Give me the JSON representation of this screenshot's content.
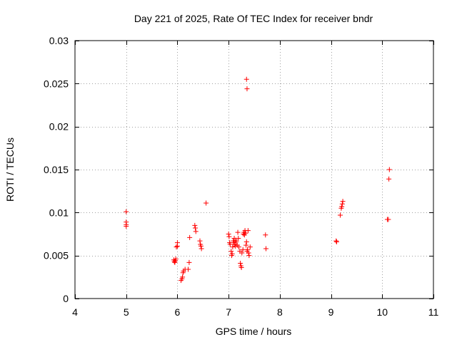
{
  "chart_data": {
    "type": "scatter",
    "title": "Day 221 of 2025, Rate Of TEC Index for receiver bndr",
    "xlabel": "GPS time / hours",
    "ylabel": "ROTI / TECUs",
    "xlim": [
      4,
      11
    ],
    "ylim": [
      0,
      0.03
    ],
    "grid": true,
    "x_ticks": [
      4,
      5,
      6,
      7,
      8,
      9,
      10,
      11
    ],
    "x_tick_labels": [
      "4",
      "5",
      "6",
      "7",
      "8",
      "9",
      "10",
      "11"
    ],
    "y_ticks": [
      0,
      0.005,
      0.01,
      0.015,
      0.02,
      0.025,
      0.03
    ],
    "y_tick_labels": [
      "0",
      "0.005",
      "0.01",
      "0.015",
      "0.02",
      "0.025",
      "0.03"
    ],
    "marker": "plus",
    "color": "#ff0000",
    "points": [
      [
        5.0,
        0.0101
      ],
      [
        5.0,
        0.0089
      ],
      [
        5.0,
        0.0086
      ],
      [
        5.0,
        0.0084
      ],
      [
        5.93,
        0.0045
      ],
      [
        5.94,
        0.0043
      ],
      [
        5.95,
        0.0042
      ],
      [
        5.96,
        0.0044
      ],
      [
        5.97,
        0.0046
      ],
      [
        5.98,
        0.006
      ],
      [
        6.0,
        0.0061
      ],
      [
        6.0,
        0.0065
      ],
      [
        6.07,
        0.0021
      ],
      [
        6.09,
        0.0023
      ],
      [
        6.1,
        0.0025
      ],
      [
        6.11,
        0.003
      ],
      [
        6.12,
        0.0032
      ],
      [
        6.15,
        0.0034
      ],
      [
        6.21,
        0.0034
      ],
      [
        6.23,
        0.0042
      ],
      [
        6.24,
        0.0071
      ],
      [
        6.34,
        0.0085
      ],
      [
        6.35,
        0.0082
      ],
      [
        6.36,
        0.0078
      ],
      [
        6.44,
        0.0067
      ],
      [
        6.45,
        0.0063
      ],
      [
        6.46,
        0.0061
      ],
      [
        6.47,
        0.0058
      ],
      [
        6.56,
        0.0111
      ],
      [
        7.0,
        0.0075
      ],
      [
        7.01,
        0.0072
      ],
      [
        7.02,
        0.0065
      ],
      [
        7.03,
        0.0063
      ],
      [
        7.05,
        0.0055
      ],
      [
        7.06,
        0.005
      ],
      [
        7.07,
        0.0052
      ],
      [
        7.08,
        0.006
      ],
      [
        7.09,
        0.0067
      ],
      [
        7.1,
        0.0065
      ],
      [
        7.11,
        0.007
      ],
      [
        7.12,
        0.0063
      ],
      [
        7.13,
        0.0061
      ],
      [
        7.14,
        0.0068
      ],
      [
        7.15,
        0.0066
      ],
      [
        7.17,
        0.0062
      ],
      [
        7.18,
        0.0077
      ],
      [
        7.19,
        0.007
      ],
      [
        7.2,
        0.006
      ],
      [
        7.22,
        0.0055
      ],
      [
        7.23,
        0.0041
      ],
      [
        7.24,
        0.0038
      ],
      [
        7.25,
        0.0036
      ],
      [
        7.26,
        0.0053
      ],
      [
        7.28,
        0.0057
      ],
      [
        7.29,
        0.0075
      ],
      [
        7.3,
        0.0077
      ],
      [
        7.31,
        0.0074
      ],
      [
        7.32,
        0.0079
      ],
      [
        7.33,
        0.0076
      ],
      [
        7.34,
        0.0062
      ],
      [
        7.35,
        0.0066
      ],
      [
        7.36,
        0.0055
      ],
      [
        7.37,
        0.0057
      ],
      [
        7.38,
        0.0079
      ],
      [
        7.39,
        0.0053
      ],
      [
        7.4,
        0.005
      ],
      [
        7.42,
        0.006
      ],
      [
        7.35,
        0.0255
      ],
      [
        7.36,
        0.0244
      ],
      [
        7.72,
        0.0074
      ],
      [
        7.73,
        0.0058
      ],
      [
        9.1,
        0.0067
      ],
      [
        9.11,
        0.0066
      ],
      [
        9.18,
        0.0097
      ],
      [
        9.2,
        0.0105
      ],
      [
        9.21,
        0.0107
      ],
      [
        9.22,
        0.011
      ],
      [
        9.23,
        0.0113
      ],
      [
        10.1,
        0.0092
      ],
      [
        10.12,
        0.0092
      ],
      [
        10.13,
        0.0139
      ],
      [
        10.14,
        0.015
      ]
    ]
  }
}
